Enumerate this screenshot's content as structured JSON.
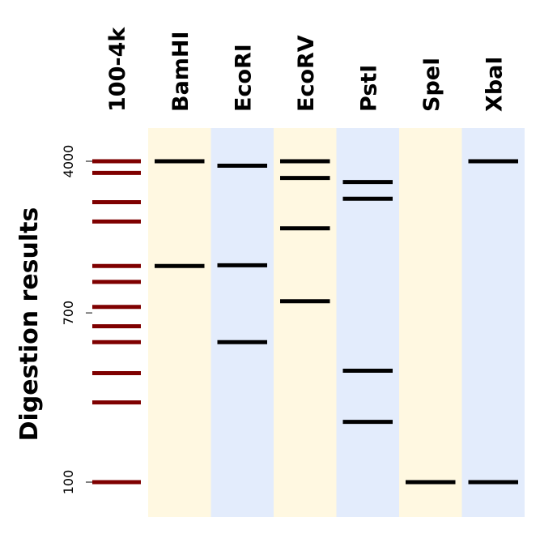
{
  "chart_data": {
    "type": "gel",
    "ylabel": "Digestion results",
    "yscale": "log",
    "ylim": [
      88,
      4600
    ],
    "yticks": [
      {
        "value": 100,
        "label": "100"
      },
      {
        "value": 700,
        "label": "700"
      },
      {
        "value": 4000,
        "label": "4000"
      }
    ],
    "ladder": {
      "label": "100-4k",
      "color": "#7f0000",
      "bands": [
        4000,
        3500,
        2500,
        2000,
        1200,
        1000,
        750,
        600,
        500,
        350,
        250,
        100
      ]
    },
    "lanes": [
      {
        "label": "BamHI",
        "bg": "#fff8e1",
        "bands": [
          4000,
          1200
        ]
      },
      {
        "label": "EcoRI",
        "bg": "#e3ecfc",
        "bands": [
          3800,
          1210,
          500
        ]
      },
      {
        "label": "EcoRV",
        "bg": "#fff8e1",
        "bands": [
          4000,
          3300,
          1850,
          800
        ]
      },
      {
        "label": "PstI",
        "bg": "#e3ecfc",
        "bands": [
          3150,
          2600,
          360,
          200
        ]
      },
      {
        "label": "SpeI",
        "bg": "#fff8e1",
        "bands": [
          100
        ]
      },
      {
        "label": "XbaI",
        "bg": "#e3ecfc",
        "bands": [
          4000,
          100
        ]
      }
    ],
    "band_color": "#000000"
  }
}
